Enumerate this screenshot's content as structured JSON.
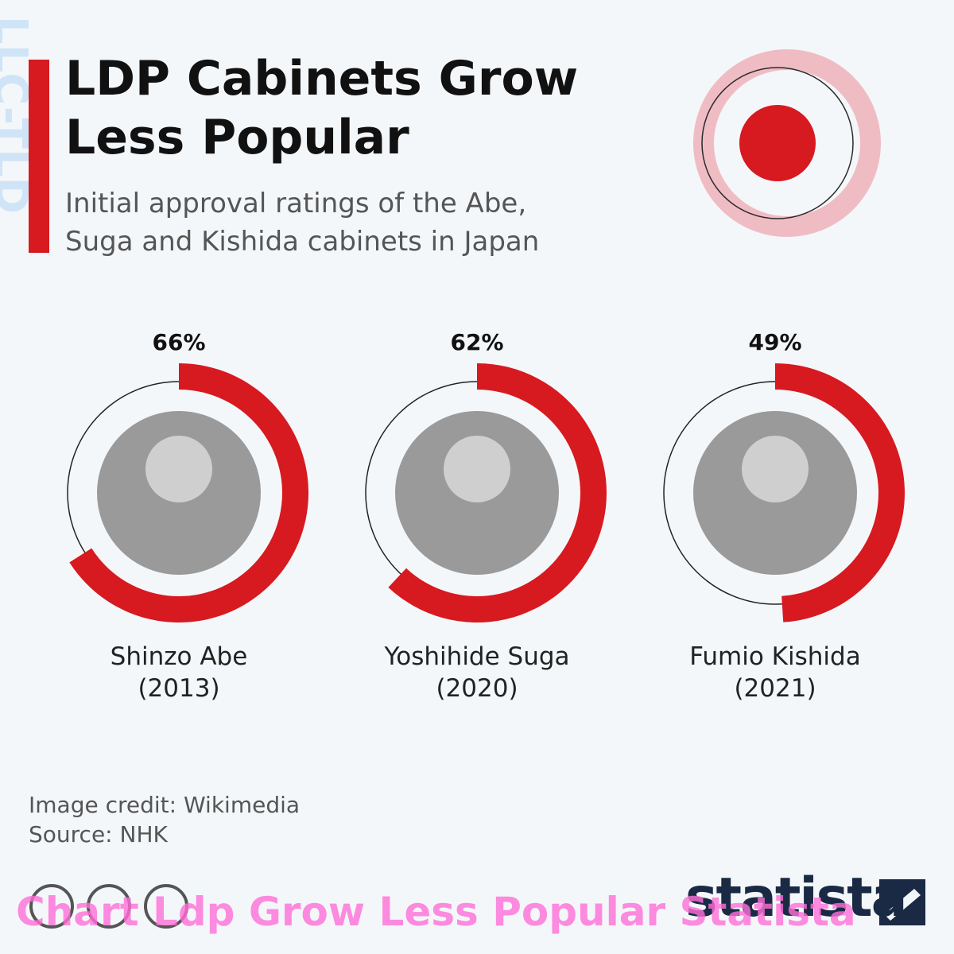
{
  "chart_data": {
    "type": "donut",
    "title": "LDP Cabinets Grow Less Popular",
    "subtitle": "Initial approval ratings of the Abe, Suga and Kishida cabinets in Japan",
    "categories": [
      "Shinzo Abe",
      "Yoshihide Suga",
      "Fumio Kishida"
    ],
    "category_years": [
      "(2013)",
      "(2020)",
      "(2021)"
    ],
    "values": [
      66,
      62,
      49
    ],
    "value_labels": [
      "66%",
      "62%",
      "49%"
    ],
    "color": "#d71920",
    "image_credit": "Image credit: Wikimedia",
    "source": "Source: NHK",
    "logo": "statista",
    "watermark": "Chart Ldp Grow Less Popular Statista",
    "side_text": "LLC-TLD"
  }
}
